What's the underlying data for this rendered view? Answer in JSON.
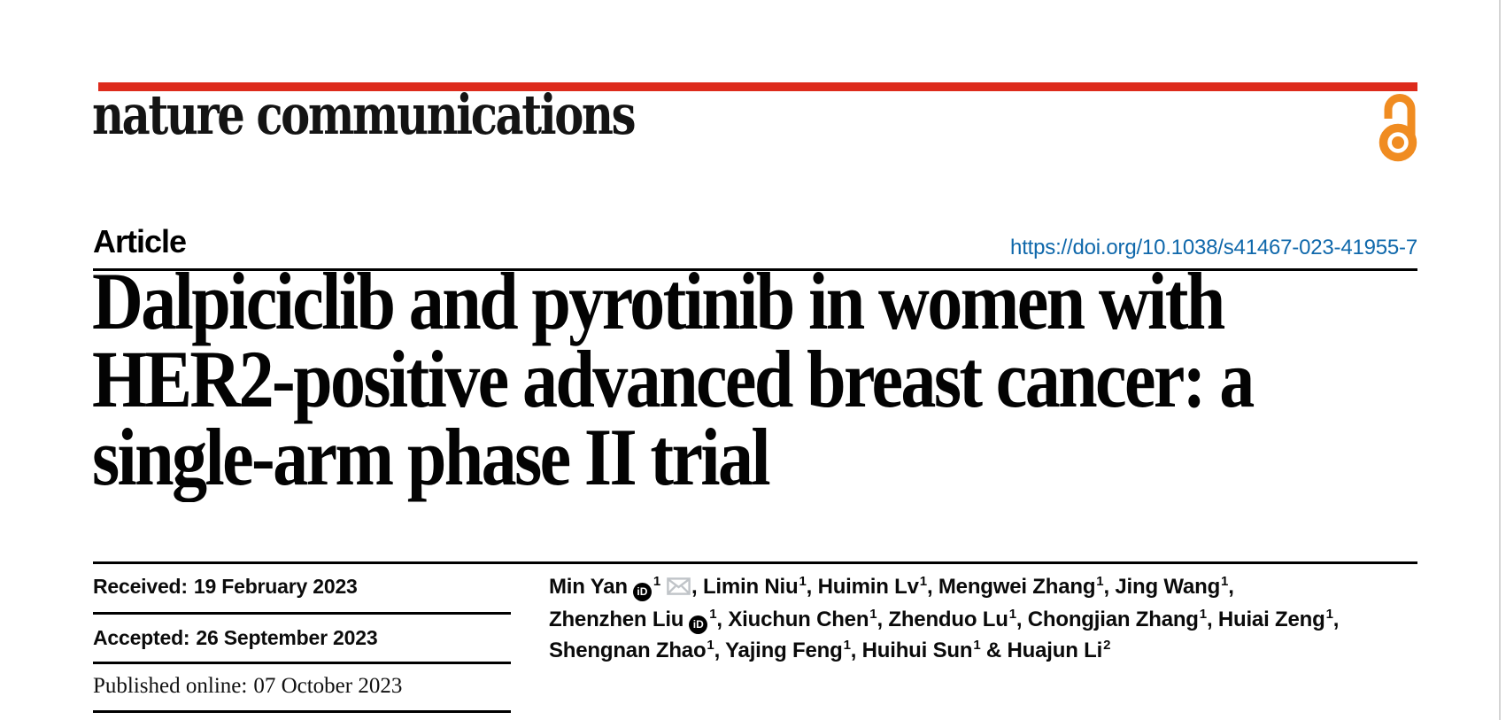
{
  "masthead": {
    "journal_name": "nature communications",
    "open_access_icon": "open-padlock-icon"
  },
  "article_header": {
    "kicker": "Article",
    "doi_url": "https://doi.org/10.1038/s41467-023-41955-7"
  },
  "title": {
    "full": "Dalpiciclib and pyrotinib in women with HER2-positive advanced breast cancer: a single-arm phase II trial",
    "lines": [
      "Dalpiciclib and pyrotinib in women with",
      "HER2-positive advanced breast cancer: a",
      "single-arm phase II trial"
    ]
  },
  "dates": [
    {
      "label": "Received:",
      "value": "19 February 2023"
    },
    {
      "label": "Accepted:",
      "value": "26 September 2023"
    },
    {
      "label": "Published online:",
      "value": "07 October 2023"
    }
  ],
  "authors": {
    "orcid_glyph": "iD",
    "icons": {
      "orcid": "orcid-id-icon",
      "email": "envelope-icon"
    },
    "lines": [
      [
        {
          "name": "Min Yan",
          "orcid": true,
          "sup": "1",
          "email": true,
          "sep": ", "
        },
        {
          "name": "Limin Niu",
          "sup": "1",
          "sep": ", "
        },
        {
          "name": "Huimin Lv",
          "sup": "1",
          "sep": ", "
        },
        {
          "name": "Mengwei Zhang",
          "sup": "1",
          "sep": ", "
        },
        {
          "name": "Jing Wang",
          "sup": "1",
          "sep": ","
        }
      ],
      [
        {
          "name": "Zhenzhen Liu",
          "orcid": true,
          "sup": "1",
          "sep": ", "
        },
        {
          "name": "Xiuchun Chen",
          "sup": "1",
          "sep": ", "
        },
        {
          "name": "Zhenduo Lu",
          "sup": "1",
          "sep": ", "
        },
        {
          "name": "Chongjian Zhang",
          "sup": "1",
          "sep": ", "
        },
        {
          "name": "Huiai Zeng",
          "sup": "1",
          "sep": ","
        }
      ],
      [
        {
          "name": "Shengnan Zhao",
          "sup": "1",
          "sep": ", "
        },
        {
          "name": "Yajing Feng",
          "sup": "1",
          "sep": ", "
        },
        {
          "name": "Huihui Sun",
          "sup": "1",
          "sep": " & "
        },
        {
          "name": "Huajun Li",
          "sup": "2",
          "sep": ""
        }
      ]
    ]
  },
  "colors": {
    "brand_red": "#dd2b1c",
    "link_blue": "#0f68ab",
    "open_access_orange": "#f08c21",
    "envelope_grey": "#c0c4c8",
    "rule_black": "#000000"
  }
}
